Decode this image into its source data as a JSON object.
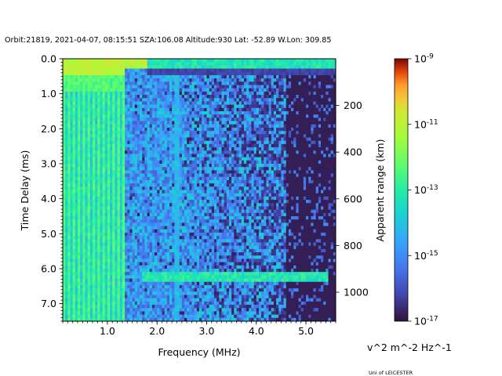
{
  "chart_data": {
    "type": "heatmap",
    "title": "Orbit:21819, 2021-04-07, 08:15:51 SZA:106.08 Altitude:930 Lat: -52.89 W.Lon: 309.85",
    "xlabel": "Frequency (MHz)",
    "ylabel": "Time Delay (ms)",
    "y2label": "Apparent range (km)",
    "xlim": [
      0.1,
      5.6
    ],
    "ylim": [
      7.5,
      0.0
    ],
    "xticks": [
      1.0,
      2.0,
      3.0,
      4.0,
      5.0
    ],
    "xtick_labels": [
      "1.0",
      "2.0",
      "3.0",
      "4.0",
      "5.0"
    ],
    "yticks": [
      0.0,
      1.0,
      2.0,
      3.0,
      4.0,
      5.0,
      6.0,
      7.0
    ],
    "ytick_labels": [
      "0.0",
      "1.0",
      "2.0",
      "3.0",
      "4.0",
      "5.0",
      "6.0",
      "7.0"
    ],
    "y2ticks": [
      200,
      400,
      600,
      800,
      1000
    ],
    "y2tick_labels": [
      "200",
      "400",
      "600",
      "800",
      "1000"
    ],
    "km_per_ms": 149.9,
    "colorbar": {
      "scale": "log",
      "range": [
        1e-17,
        1e-09
      ],
      "ticks": [
        -17,
        -15,
        -13,
        -11,
        -9
      ],
      "tick_labels": [
        "10^-17",
        "10^-15",
        "10^-13",
        "10^-11",
        "10^-9"
      ],
      "colormap": "turbo",
      "unit": "v^2 m^-2 Hz^-1"
    },
    "features": {
      "plasma_lines_below_MHz": 1.35,
      "upper_band_delay_ms": [
        0.0,
        0.45
      ],
      "surface_echo_delay_ms": 6.25,
      "surface_echo_from_MHz": 1.7,
      "vertical_line_MHz": 2.4
    }
  },
  "footer": {
    "credit": "Uni of LEICESTER"
  }
}
